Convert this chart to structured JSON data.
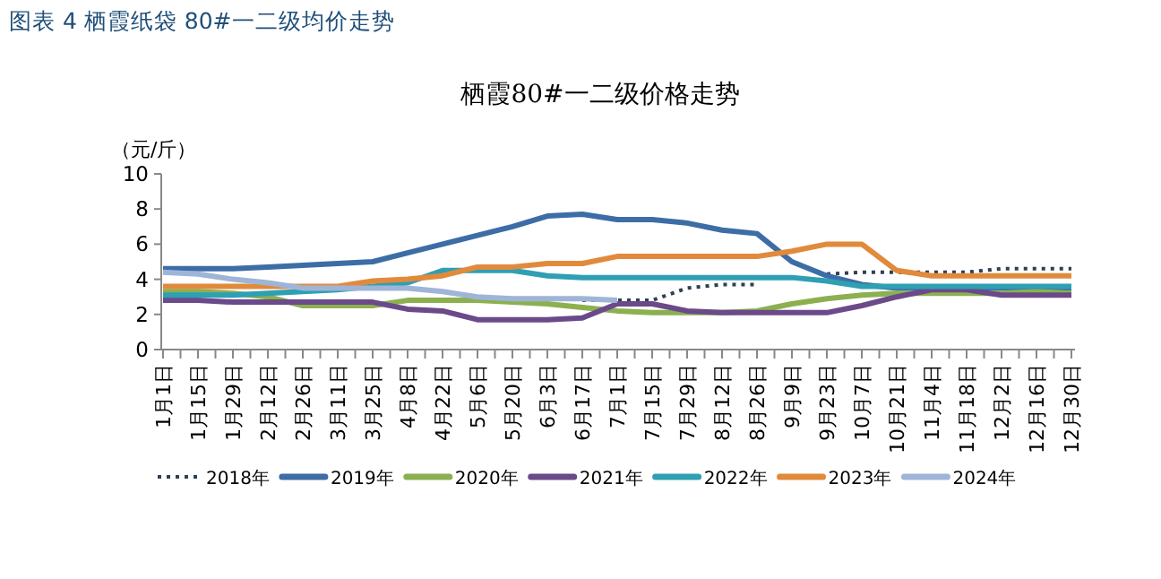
{
  "chart_data": {
    "type": "line",
    "title": "图表 4 栖霞纸袋 80#一二级均价走势",
    "subtitle": "栖霞80#一二级价格走势",
    "ylabel": "（元/斤）",
    "categories": [
      "1月1日",
      "1月15日",
      "1月29日",
      "2月12日",
      "2月26日",
      "3月11日",
      "3月25日",
      "4月8日",
      "4月22日",
      "5月6日",
      "5月20日",
      "6月3日",
      "6月17日",
      "7月1日",
      "7月15日",
      "7月29日",
      "8月12日",
      "8月26日",
      "9月9日",
      "9月23日",
      "10月7日",
      "10月21日",
      "11月4日",
      "11月18日",
      "12月2日",
      "12月16日",
      "12月30日"
    ],
    "ylim": [
      0,
      10
    ],
    "yticks": [
      0,
      2,
      4,
      6,
      8,
      10
    ],
    "grid": false,
    "legend": "bottom",
    "marker": "none",
    "series": [
      {
        "name": "2018年",
        "color": "#2f3f56",
        "line_style": "dotted",
        "values": [
          null,
          null,
          null,
          null,
          null,
          null,
          null,
          null,
          null,
          null,
          null,
          null,
          2.8,
          2.8,
          2.8,
          3.5,
          3.7,
          3.7,
          null,
          4.3,
          4.4,
          4.4,
          4.4,
          4.4,
          4.6,
          4.6,
          4.6
        ]
      },
      {
        "name": "2019年",
        "color": "#3d6da6",
        "values": [
          4.6,
          4.6,
          4.6,
          4.7,
          4.8,
          4.9,
          5.0,
          5.5,
          6.0,
          6.5,
          7.0,
          7.6,
          7.7,
          7.4,
          7.4,
          7.2,
          6.8,
          6.6,
          5.0,
          4.2,
          3.7,
          3.5,
          3.5,
          3.5,
          3.5,
          3.5,
          3.5
        ]
      },
      {
        "name": "2020年",
        "color": "#8cb04f",
        "values": [
          3.3,
          3.3,
          3.2,
          3.0,
          2.5,
          2.5,
          2.5,
          2.8,
          2.8,
          2.8,
          2.7,
          2.6,
          2.4,
          2.2,
          2.1,
          2.1,
          2.1,
          2.2,
          2.6,
          2.9,
          3.1,
          3.2,
          3.2,
          3.2,
          3.2,
          3.3,
          3.2
        ]
      },
      {
        "name": "2021年",
        "color": "#6b4a8a",
        "values": [
          2.8,
          2.8,
          2.7,
          2.7,
          2.7,
          2.7,
          2.7,
          2.3,
          2.2,
          1.7,
          1.7,
          1.7,
          1.8,
          2.6,
          2.6,
          2.2,
          2.1,
          2.1,
          2.1,
          2.1,
          2.5,
          3.0,
          3.4,
          3.4,
          3.1,
          3.1,
          3.1
        ]
      },
      {
        "name": "2022年",
        "color": "#2f9fb3",
        "values": [
          3.1,
          3.1,
          3.1,
          3.2,
          3.3,
          3.4,
          3.6,
          3.8,
          4.5,
          4.5,
          4.5,
          4.2,
          4.1,
          4.1,
          4.1,
          4.1,
          4.1,
          4.1,
          4.1,
          3.9,
          3.6,
          3.6,
          3.6,
          3.6,
          3.6,
          3.6,
          3.6
        ]
      },
      {
        "name": "2023年",
        "color": "#e28a3c",
        "values": [
          3.6,
          3.6,
          3.6,
          3.6,
          3.6,
          3.6,
          3.9,
          4.0,
          4.2,
          4.7,
          4.7,
          4.9,
          4.9,
          5.3,
          5.3,
          5.3,
          5.3,
          5.3,
          5.6,
          6.0,
          6.0,
          4.5,
          4.2,
          4.2,
          4.2,
          4.2,
          4.2
        ]
      },
      {
        "name": "2024年",
        "color": "#9fb5d8",
        "values": [
          4.4,
          4.3,
          4.0,
          3.8,
          3.5,
          3.5,
          3.5,
          3.5,
          3.3,
          3.0,
          2.9,
          2.9,
          2.9,
          2.8,
          null,
          null,
          null,
          null,
          null,
          null,
          null,
          null,
          null,
          null,
          null,
          null,
          null
        ]
      }
    ]
  }
}
